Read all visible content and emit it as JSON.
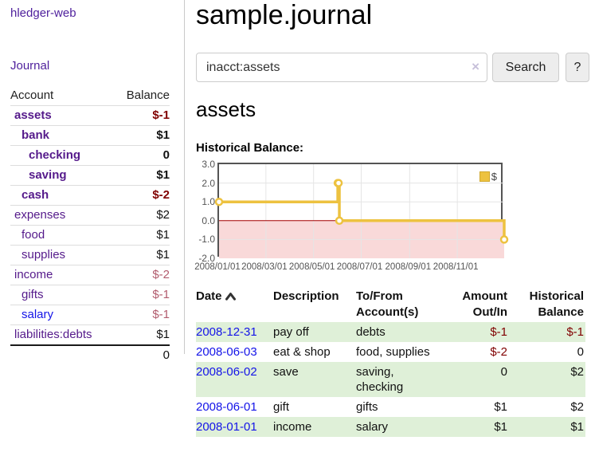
{
  "app": {
    "brand": "hledger-web",
    "title": "sample.journal"
  },
  "sidebar": {
    "journal_link": "Journal",
    "accounts": {
      "header": {
        "account": "Account",
        "balance": "Balance"
      },
      "rows": [
        {
          "name": "assets",
          "balance": "$-1"
        },
        {
          "name": "bank",
          "balance": "$1"
        },
        {
          "name": "checking",
          "balance": "0"
        },
        {
          "name": "saving",
          "balance": "$1"
        },
        {
          "name": "cash",
          "balance": "$-2"
        },
        {
          "name": "expenses",
          "balance": "$2"
        },
        {
          "name": "food",
          "balance": "$1"
        },
        {
          "name": "supplies",
          "balance": "$1"
        },
        {
          "name": "income",
          "balance": "$-2"
        },
        {
          "name": "gifts",
          "balance": "$-1"
        },
        {
          "name": "salary",
          "balance": "$-1"
        },
        {
          "name": "liabilities:debts",
          "balance": "$1"
        }
      ],
      "total": "0"
    }
  },
  "search": {
    "value": "inacct:assets",
    "clear": "×",
    "submit": "Search",
    "help": "?"
  },
  "account_view": {
    "heading": "assets",
    "chart_title": "Historical Balance:"
  },
  "chart_data": {
    "type": "line",
    "title": "Historical Balance",
    "step": true,
    "legend": [
      {
        "name": "$",
        "color": "#edc240"
      }
    ],
    "series": [
      {
        "name": "$",
        "points": [
          {
            "date": "2008-01-01",
            "day": 1,
            "value": 1
          },
          {
            "date": "2008-06-01",
            "day": 153,
            "value": 2
          },
          {
            "date": "2008-06-02",
            "day": 154,
            "value": 2
          },
          {
            "date": "2008-06-03",
            "day": 155,
            "value": 0
          },
          {
            "date": "2008-12-31",
            "day": 366,
            "value": -1
          }
        ]
      }
    ],
    "x_ticks": [
      {
        "label": "2008/01/01",
        "day": 1
      },
      {
        "label": "2008/03/01",
        "day": 61
      },
      {
        "label": "2008/05/01",
        "day": 122
      },
      {
        "label": "2008/07/01",
        "day": 183
      },
      {
        "label": "2008/09/01",
        "day": 245
      },
      {
        "label": "2008/11/01",
        "day": 306
      }
    ],
    "y_ticks": [
      "3.0",
      "2.0",
      "1.0",
      "0.0",
      "-1.0",
      "-2.0"
    ],
    "ylim": [
      -2,
      3
    ],
    "xlim_days": [
      1,
      366
    ],
    "colors": {
      "line": "#edc240",
      "marker_fill": "#ffffff",
      "grid": "#e5e5e5",
      "border": "#545454",
      "zero_line": "#a40000",
      "negative_fill": "#f9d9d9"
    }
  },
  "register": {
    "headers": {
      "date": "Date",
      "description": "Description",
      "account_l1": "To/From",
      "account_l2": "Account(s)",
      "amount_l1": "Amount",
      "amount_l2": "Out/In",
      "balance_l1": "Historical",
      "balance_l2": "Balance"
    },
    "rows": [
      {
        "date": "2008-12-31",
        "description": "pay off",
        "accounts": "debts",
        "amount": "$-1",
        "balance": "$-1"
      },
      {
        "date": "2008-06-03",
        "description": "eat & shop",
        "accounts": "food, supplies",
        "amount": "$-2",
        "balance": "0"
      },
      {
        "date": "2008-06-02",
        "description": "save",
        "accounts": "saving, checking",
        "amount": "0",
        "balance": "$2"
      },
      {
        "date": "2008-06-01",
        "description": "gift",
        "accounts": "gifts",
        "amount": "$1",
        "balance": "$2"
      },
      {
        "date": "2008-01-01",
        "description": "income",
        "accounts": "salary",
        "amount": "$1",
        "balance": "$1"
      }
    ]
  }
}
